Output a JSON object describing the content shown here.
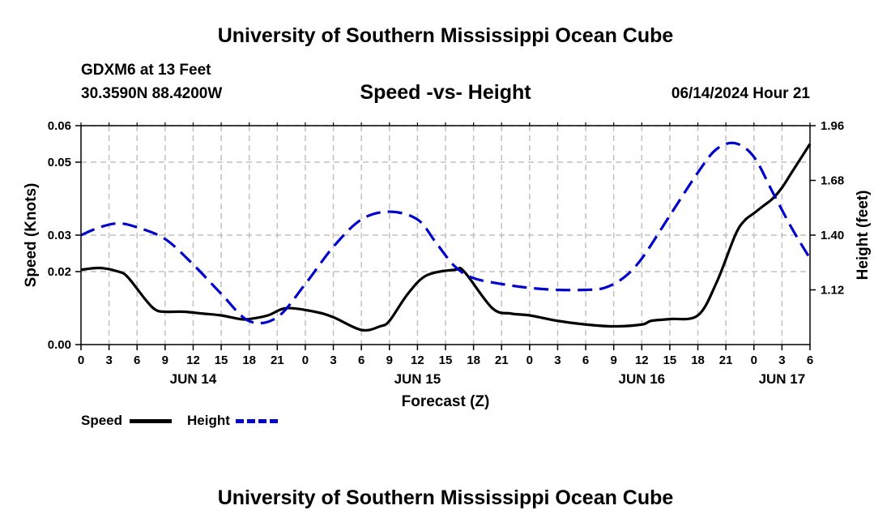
{
  "header": {
    "title": "University of Southern Mississippi Ocean Cube",
    "station": "GDXM6 at 13 Feet",
    "coords": "30.3590N  88.4200W",
    "subtitle": "Speed -vs- Height",
    "datetime": "06/14/2024 Hour 21",
    "footer_title": "University of Southern Mississippi Ocean Cube"
  },
  "legend": {
    "speed_label": "Speed",
    "height_label": "Height"
  },
  "colors": {
    "speed": "#000000",
    "height": "#0000cc",
    "grid": "#c0c0c0"
  },
  "chart_data": {
    "type": "line",
    "title": "Speed -vs- Height",
    "xlabel": "Forecast (Z)",
    "ylabel_left": "Speed (Knots)",
    "ylabel_right": "Height (feet)",
    "xlim": [
      0,
      78
    ],
    "x_ticks": [
      0,
      3,
      6,
      9,
      12,
      15,
      18,
      21,
      24,
      27,
      30,
      33,
      36,
      39,
      42,
      45,
      48,
      51,
      54,
      57,
      60,
      63,
      66,
      69,
      72,
      75,
      78
    ],
    "x_tick_labels": [
      "0",
      "3",
      "6",
      "9",
      "12",
      "15",
      "18",
      "21",
      "0",
      "3",
      "6",
      "9",
      "12",
      "15",
      "18",
      "21",
      "0",
      "3",
      "6",
      "9",
      "12",
      "15",
      "18",
      "21",
      "0",
      "3",
      "6"
    ],
    "day_labels": [
      {
        "x": 12,
        "label": "JUN 14"
      },
      {
        "x": 36,
        "label": "JUN 15"
      },
      {
        "x": 60,
        "label": "JUN 16"
      },
      {
        "x": 75,
        "label": "JUN 17"
      }
    ],
    "ylim_left": [
      0,
      0.06
    ],
    "y_ticks_left": [
      0,
      0.02,
      0.03,
      0.05,
      0.06
    ],
    "y_tick_labels_left": [
      "0.00",
      "0.02",
      "0.03",
      "0.05",
      "0.06"
    ],
    "ylim_right": [
      0.84,
      1.96
    ],
    "y_ticks_right": [
      1.12,
      1.4,
      1.68,
      1.96
    ],
    "y_tick_labels_right": [
      "1.12",
      "1.40",
      "1.68",
      "1.96"
    ],
    "gridlines": true,
    "grid_y_left": [
      0.02,
      0.03,
      0.05,
      0.06
    ],
    "series": [
      {
        "name": "Speed",
        "axis": "left",
        "style": "solid",
        "x": [
          0,
          2,
          4,
          5,
          7,
          8,
          9,
          11,
          13,
          15,
          17,
          18,
          20,
          22,
          25,
          27,
          30,
          32,
          33,
          35,
          37,
          40,
          41,
          44,
          46,
          48,
          51,
          54,
          57,
          60,
          61,
          63,
          66,
          68,
          70,
          71,
          72,
          73,
          74,
          75,
          76,
          77,
          78
        ],
        "values": [
          0.0205,
          0.021,
          0.02,
          0.0185,
          0.012,
          0.0095,
          0.009,
          0.009,
          0.0085,
          0.008,
          0.007,
          0.007,
          0.008,
          0.01,
          0.009,
          0.0075,
          0.004,
          0.005,
          0.0065,
          0.014,
          0.019,
          0.0205,
          0.02,
          0.01,
          0.0085,
          0.008,
          0.0065,
          0.0055,
          0.005,
          0.0055,
          0.0065,
          0.007,
          0.008,
          0.017,
          0.03,
          0.034,
          0.036,
          0.038,
          0.04,
          0.043,
          0.047,
          0.051,
          0.055
        ]
      },
      {
        "name": "Height",
        "axis": "right",
        "style": "dashed",
        "x": [
          0,
          2,
          4,
          6,
          9,
          12,
          15,
          18,
          21,
          24,
          27,
          30,
          33,
          36,
          38,
          40,
          42,
          45,
          48,
          51,
          54,
          56,
          58,
          60,
          63,
          66,
          68,
          70,
          72,
          74,
          76,
          78
        ],
        "values": [
          1.4,
          1.44,
          1.46,
          1.44,
          1.38,
          1.25,
          1.1,
          0.96,
          0.98,
          1.15,
          1.34,
          1.48,
          1.52,
          1.48,
          1.36,
          1.24,
          1.18,
          1.15,
          1.13,
          1.12,
          1.12,
          1.13,
          1.18,
          1.28,
          1.5,
          1.72,
          1.84,
          1.87,
          1.8,
          1.62,
          1.44,
          1.28
        ]
      }
    ]
  }
}
